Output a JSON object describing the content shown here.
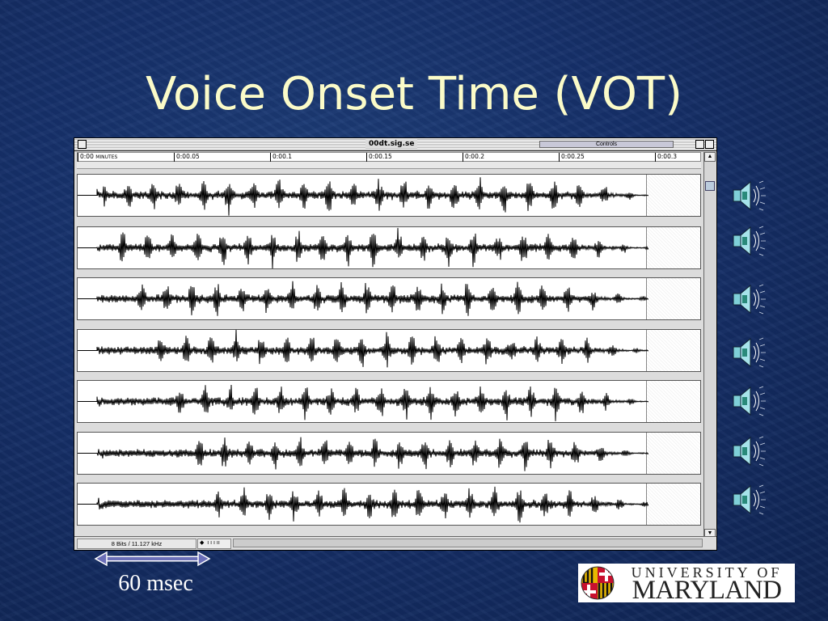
{
  "slide": {
    "title": "Voice Onset Time (VOT)",
    "duration_label": "60 msec"
  },
  "window": {
    "title": "00dt.sig.se",
    "controls_label": "Controls",
    "status": "8 Bits / 11.127 kHz",
    "ruler_ticks": [
      "0:00",
      "0:00.05",
      "0:00.1",
      "0:00.15",
      "0:00.2",
      "0:00.25",
      "0:00.3"
    ],
    "ruler_unit": "MINUTES"
  },
  "tracks": [
    {
      "vot_ms": 0
    },
    {
      "vot_ms": 10
    },
    {
      "vot_ms": 20
    },
    {
      "vot_ms": 30
    },
    {
      "vot_ms": 40
    },
    {
      "vot_ms": 50
    },
    {
      "vot_ms": 60
    }
  ],
  "speakers": [
    "speaker-icon",
    "speaker-icon",
    "speaker-icon",
    "speaker-icon",
    "speaker-icon",
    "speaker-icon",
    "speaker-icon"
  ],
  "logo": {
    "line1": "UNIVERSITY OF",
    "line2": "MARYLAND"
  },
  "colors": {
    "title": "#fbfbc8",
    "background": "#16306a",
    "arrow": "#6b6fb8"
  }
}
